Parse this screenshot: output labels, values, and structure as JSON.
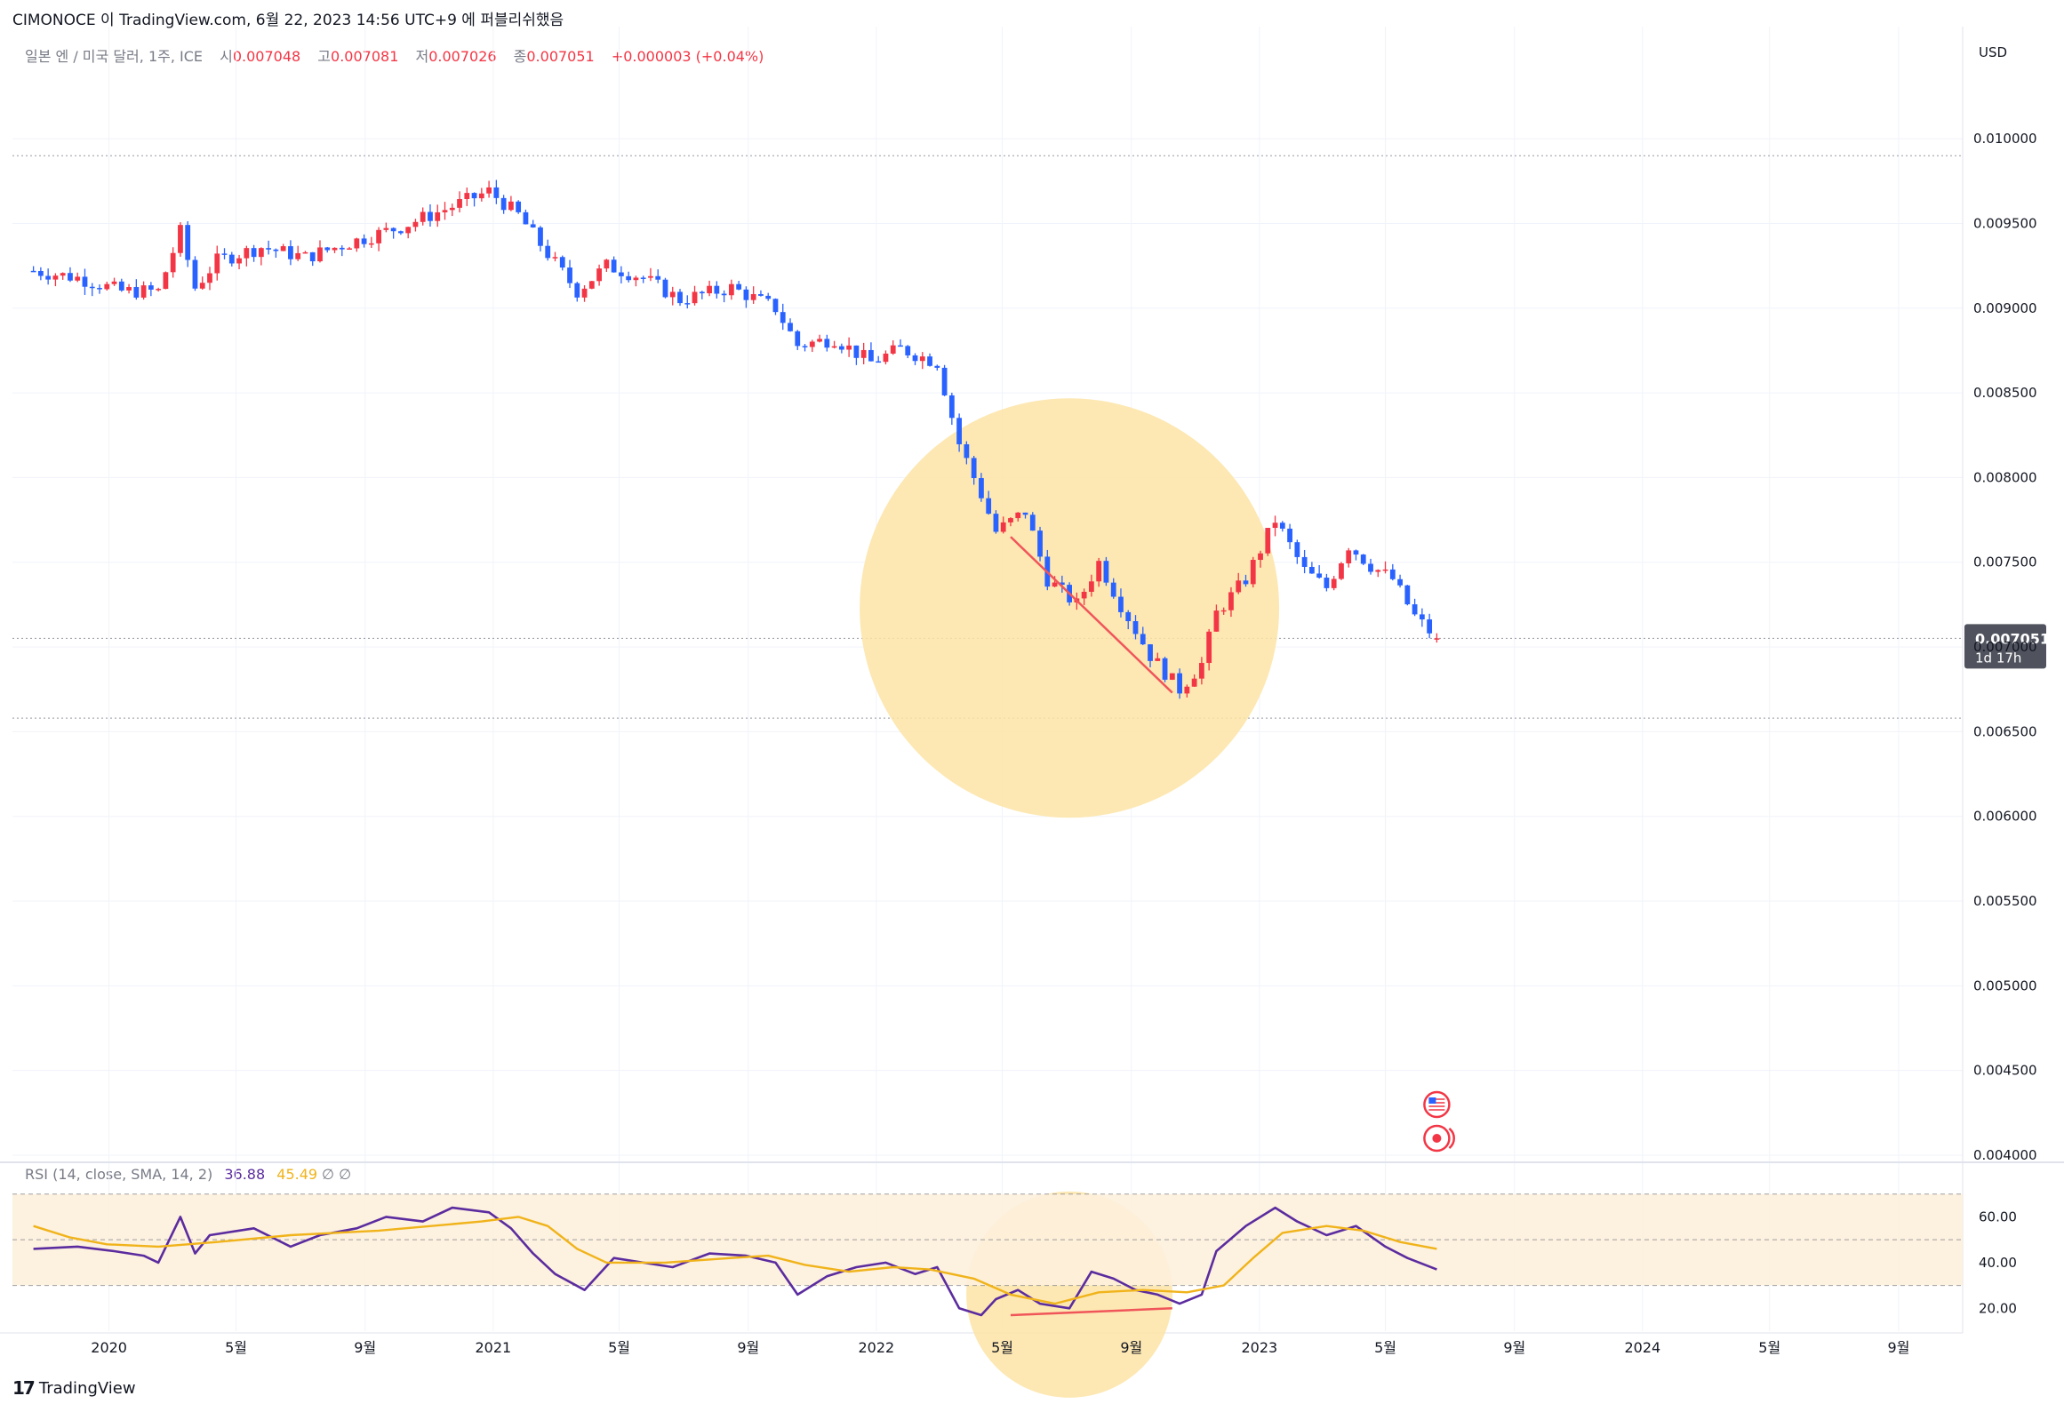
{
  "header": {
    "attribution": "CIMONOCE 이 TradingView.com, 6월 22, 2023 14:56 UTC+9 에 퍼블리쉬했음"
  },
  "legend": {
    "symbol": "일본 엔 / 미국 달러, 1주, ICE",
    "open_label": "시",
    "open": "0.007048",
    "high_label": "고",
    "high": "0.007081",
    "low_label": "저",
    "low": "0.007026",
    "close_label": "종",
    "close": "0.007051",
    "change": "+0.000003 (+0.04%)"
  },
  "rsi_legend": {
    "label": "RSI (14, close, SMA, 14, 2)",
    "rsi_value": "36.88",
    "sma_value": "45.49",
    "extra": "∅ ∅"
  },
  "currency": "USD",
  "last_price": {
    "value": "0.007051",
    "countdown": "1d 17h"
  },
  "watermark": "TradingView",
  "colors": {
    "up": "#f23645",
    "down": "#2962ff",
    "rsi_line": "#5b2c9f",
    "rsi_sma": "#f0b31a",
    "rsi_band": "#fdf0dc",
    "highlight": "#fde4a6",
    "divergence": "#f0555a"
  },
  "chart_data": [
    {
      "type": "candlestick",
      "title": "일본 엔 / 미국 달러, 1주, ICE",
      "ylabel": "USD",
      "ylim": [
        0.004,
        0.0102
      ],
      "y_ticks": [
        "0.010000",
        "0.009500",
        "0.009000",
        "0.008500",
        "0.008000",
        "0.007500",
        "0.007000",
        "0.006500",
        "0.006000",
        "0.005500",
        "0.005000",
        "0.004500",
        "0.004000"
      ],
      "x_ticks": [
        "2020",
        "5월",
        "9월",
        "2021",
        "5월",
        "9월",
        "2022",
        "5월",
        "9월",
        "2023",
        "5월",
        "9월",
        "2024",
        "5월",
        "9월"
      ],
      "x_tick_dates": [
        "2020-01",
        "2020-05",
        "2020-09",
        "2021-01",
        "2021-05",
        "2021-09",
        "2022-01",
        "2022-05",
        "2022-09",
        "2023-01",
        "2023-05",
        "2023-09",
        "2024-01",
        "2024-05",
        "2024-09"
      ],
      "xlim": [
        "2019-10",
        "2024-11"
      ],
      "start": "2019-10-21",
      "interval": "1 week",
      "close_path": [
        [
          "2019-10-21",
          0.00922
        ],
        [
          "2019-12-02",
          0.00918
        ],
        [
          "2020-01-13",
          0.0091
        ],
        [
          "2020-02-17",
          0.0091
        ],
        [
          "2020-03-09",
          0.00945
        ],
        [
          "2020-03-23",
          0.00912
        ],
        [
          "2020-04-13",
          0.00928
        ],
        [
          "2020-05-25",
          0.00936
        ],
        [
          "2020-07-06",
          0.0093
        ],
        [
          "2020-08-24",
          0.0094
        ],
        [
          "2020-10-05",
          0.00948
        ],
        [
          "2020-11-23",
          0.0096
        ],
        [
          "2020-12-28",
          0.00969
        ],
        [
          "2021-01-25",
          0.00955
        ],
        [
          "2021-02-22",
          0.00932
        ],
        [
          "2021-03-22",
          0.0091
        ],
        [
          "2021-04-19",
          0.00925
        ],
        [
          "2021-05-24",
          0.00918
        ],
        [
          "2021-06-28",
          0.00905
        ],
        [
          "2021-08-16",
          0.00912
        ],
        [
          "2021-09-27",
          0.009
        ],
        [
          "2021-10-18",
          0.00878
        ],
        [
          "2021-11-22",
          0.00882
        ],
        [
          "2021-12-27",
          0.00868
        ],
        [
          "2022-01-24",
          0.00876
        ],
        [
          "2022-02-28",
          0.00868
        ],
        [
          "2022-03-21",
          0.0082
        ],
        [
          "2022-04-11",
          0.0079
        ],
        [
          "2022-04-25",
          0.00768
        ],
        [
          "2022-05-23",
          0.0078
        ],
        [
          "2022-06-13",
          0.0074
        ],
        [
          "2022-07-11",
          0.00725
        ],
        [
          "2022-08-01",
          0.0075
        ],
        [
          "2022-08-22",
          0.00725
        ],
        [
          "2022-09-19",
          0.00695
        ],
        [
          "2022-10-17",
          0.00675
        ],
        [
          "2022-11-07",
          0.0069
        ],
        [
          "2022-11-21",
          0.0072
        ],
        [
          "2022-12-19",
          0.0074
        ],
        [
          "2023-01-16",
          0.00775
        ],
        [
          "2023-02-13",
          0.00745
        ],
        [
          "2023-03-06",
          0.00735
        ],
        [
          "2023-03-27",
          0.0076
        ],
        [
          "2023-04-17",
          0.00748
        ],
        [
          "2023-05-08",
          0.0074
        ],
        [
          "2023-05-29",
          0.00718
        ],
        [
          "2023-06-19",
          0.00705
        ]
      ],
      "range_lines": [
        0.0099,
        0.00658
      ],
      "last": {
        "open": 0.007048,
        "high": 0.007081,
        "low": 0.007026,
        "close": 0.007051
      },
      "trendline": {
        "from": [
          "2022-05-09",
          0.00765
        ],
        "to": [
          "2022-10-10",
          0.00673
        ]
      },
      "highlight": {
        "center": [
          "2022-07-04",
          0.00723
        ],
        "radius": "bottom of the price drop"
      },
      "markers": [
        "us-flag-icon",
        "event-icon"
      ]
    },
    {
      "type": "line",
      "title": "RSI (14, close, SMA, 14, 2)",
      "ylim": [
        10,
        80
      ],
      "y_ticks": [
        "60.00",
        "40.00",
        "20.00"
      ],
      "band": [
        30,
        70
      ],
      "mid_line": 50,
      "series": [
        {
          "name": "RSI",
          "points": [
            [
              "2019-10-21",
              46
            ],
            [
              "2019-12-02",
              47
            ],
            [
              "2020-01-06",
              45
            ],
            [
              "2020-02-03",
              43
            ],
            [
              "2020-02-17",
              40
            ],
            [
              "2020-03-09",
              60
            ],
            [
              "2020-03-23",
              44
            ],
            [
              "2020-04-06",
              52
            ],
            [
              "2020-05-18",
              55
            ],
            [
              "2020-06-22",
              47
            ],
            [
              "2020-07-20",
              52
            ],
            [
              "2020-08-24",
              55
            ],
            [
              "2020-09-21",
              60
            ],
            [
              "2020-10-26",
              58
            ],
            [
              "2020-11-23",
              64
            ],
            [
              "2020-12-28",
              62
            ],
            [
              "2021-01-18",
              55
            ],
            [
              "2021-02-08",
              44
            ],
            [
              "2021-03-01",
              35
            ],
            [
              "2021-03-29",
              28
            ],
            [
              "2021-04-26",
              42
            ],
            [
              "2021-05-24",
              40
            ],
            [
              "2021-06-21",
              38
            ],
            [
              "2021-07-26",
              44
            ],
            [
              "2021-08-30",
              43
            ],
            [
              "2021-09-27",
              40
            ],
            [
              "2021-10-18",
              26
            ],
            [
              "2021-11-15",
              34
            ],
            [
              "2021-12-13",
              38
            ],
            [
              "2022-01-10",
              40
            ],
            [
              "2022-02-07",
              35
            ],
            [
              "2022-02-28",
              38
            ],
            [
              "2022-03-21",
              20
            ],
            [
              "2022-04-11",
              17
            ],
            [
              "2022-04-25",
              24
            ],
            [
              "2022-05-16",
              28
            ],
            [
              "2022-06-06",
              22
            ],
            [
              "2022-07-04",
              20
            ],
            [
              "2022-07-25",
              36
            ],
            [
              "2022-08-15",
              33
            ],
            [
              "2022-09-05",
              28
            ],
            [
              "2022-09-26",
              26
            ],
            [
              "2022-10-17",
              22
            ],
            [
              "2022-11-07",
              26
            ],
            [
              "2022-11-21",
              45
            ],
            [
              "2022-12-19",
              56
            ],
            [
              "2023-01-16",
              64
            ],
            [
              "2023-02-06",
              58
            ],
            [
              "2023-03-06",
              52
            ],
            [
              "2023-04-03",
              56
            ],
            [
              "2023-05-01",
              47
            ],
            [
              "2023-05-22",
              42
            ],
            [
              "2023-06-19",
              37
            ]
          ]
        },
        {
          "name": "SMA",
          "points": [
            [
              "2019-10-21",
              56
            ],
            [
              "2019-11-25",
              51
            ],
            [
              "2019-12-30",
              48
            ],
            [
              "2020-02-17",
              47
            ],
            [
              "2020-04-13",
              49
            ],
            [
              "2020-06-22",
              52
            ],
            [
              "2020-09-14",
              54
            ],
            [
              "2020-12-21",
              58
            ],
            [
              "2021-01-25",
              60
            ],
            [
              "2021-02-22",
              56
            ],
            [
              "2021-03-22",
              46
            ],
            [
              "2021-04-19",
              40
            ],
            [
              "2021-06-14",
              40
            ],
            [
              "2021-08-16",
              42
            ],
            [
              "2021-09-20",
              43
            ],
            [
              "2021-10-25",
              39
            ],
            [
              "2021-12-06",
              36
            ],
            [
              "2022-01-17",
              38
            ],
            [
              "2022-02-21",
              37
            ],
            [
              "2022-04-04",
              33
            ],
            [
              "2022-05-09",
              26
            ],
            [
              "2022-06-20",
              22
            ],
            [
              "2022-08-01",
              27
            ],
            [
              "2022-09-12",
              28
            ],
            [
              "2022-10-24",
              27
            ],
            [
              "2022-11-28",
              30
            ],
            [
              "2022-12-26",
              42
            ],
            [
              "2023-01-23",
              53
            ],
            [
              "2023-03-06",
              56
            ],
            [
              "2023-04-10",
              54
            ],
            [
              "2023-05-15",
              49
            ],
            [
              "2023-06-19",
              46
            ]
          ]
        }
      ],
      "divergence": {
        "from": [
          "2022-05-09",
          17
        ],
        "to": [
          "2022-10-10",
          20
        ]
      },
      "highlight": {
        "center": [
          "2022-07-04",
          26
        ]
      }
    }
  ]
}
